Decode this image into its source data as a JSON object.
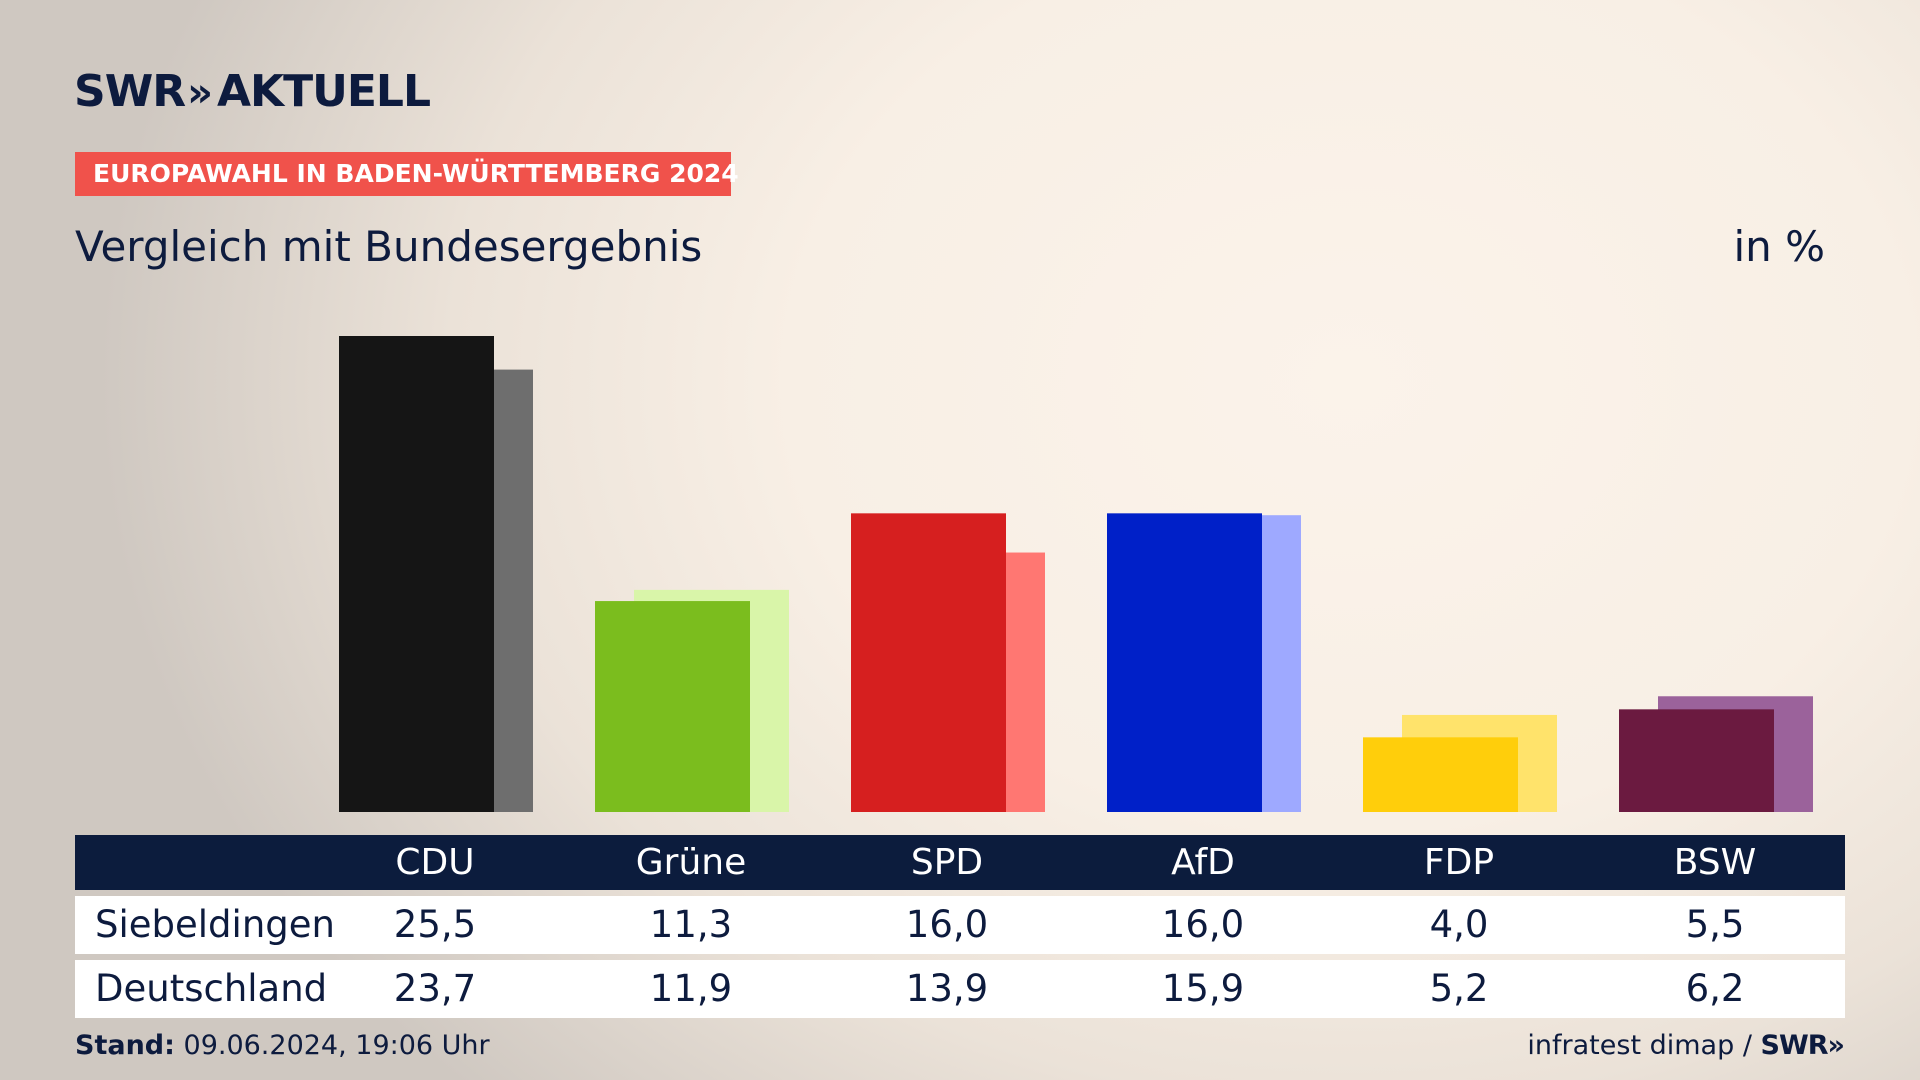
{
  "logo": {
    "brand": "SWR",
    "chevrons": "»",
    "product": "AKTUELL"
  },
  "tag": "EUROPAWAHL IN BADEN-WÜRTTEMBERG 2024",
  "title": "Vergleich mit Bundesergebnis",
  "unit": "in %",
  "footer": {
    "stand_label": "Stand:",
    "stand_value": "09.06.2024, 19:06 Uhr",
    "source": "infratest dimap /",
    "brand": "SWR»"
  },
  "chart_data": {
    "type": "bar",
    "categories": [
      "CDU",
      "Grüne",
      "SPD",
      "AfD",
      "FDP",
      "BSW"
    ],
    "series": [
      {
        "name": "Siebeldingen",
        "values": [
          25.5,
          11.3,
          16.0,
          16.0,
          4.0,
          5.5
        ],
        "display": [
          "25,5",
          "11,3",
          "16,0",
          "16,0",
          "4,0",
          "5,5"
        ]
      },
      {
        "name": "Deutschland",
        "values": [
          23.7,
          11.9,
          13.9,
          15.9,
          5.2,
          6.2
        ],
        "display": [
          "23,7",
          "11,9",
          "13,9",
          "15,9",
          "5,2",
          "6,2"
        ]
      }
    ],
    "colors": {
      "primary": [
        "#151515",
        "#7bbd1e",
        "#d61f1f",
        "#0020c8",
        "#ffce0b",
        "#6b1a40"
      ],
      "secondary": [
        "#6e6e6e",
        "#d9f5a9",
        "#ff7772",
        "#9ea9ff",
        "#ffe36b",
        "#9b629b"
      ]
    },
    "ylim": [
      0,
      26.5
    ],
    "grid": false
  }
}
